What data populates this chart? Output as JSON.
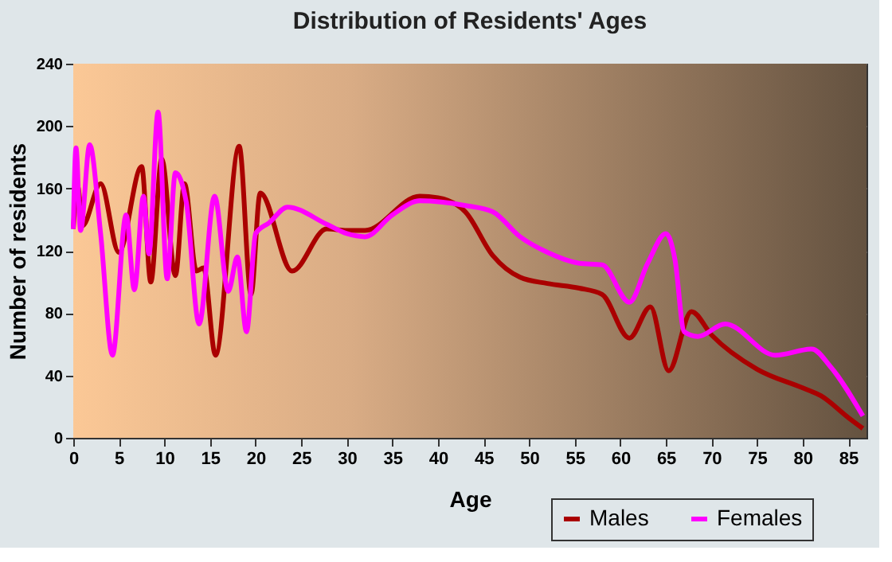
{
  "chart_data": {
    "type": "line",
    "title": "Distribution of Residents' Ages",
    "xlabel": "Age",
    "ylabel": "Number of residents",
    "xlim": [
      0,
      87
    ],
    "xticks": [
      0,
      5,
      10,
      15,
      20,
      25,
      30,
      35,
      40,
      45,
      50,
      55,
      60,
      65,
      70,
      75,
      80,
      85
    ],
    "ylim": [
      0,
      240
    ],
    "yticks": [
      0,
      40,
      80,
      120,
      160,
      200,
      240
    ],
    "grid": true,
    "legend": "bottom right",
    "series": [
      {
        "name": "Males",
        "color": "#aa0000",
        "x": [
          0,
          0.5,
          1,
          3,
          5,
          7.5,
          8.5,
          9.7,
          11.2,
          12.2,
          13.5,
          14.3,
          15.6,
          18.2,
          19.5,
          20.5,
          24,
          27.8,
          30,
          32,
          38,
          40,
          43,
          46,
          49,
          52,
          55.5,
          58,
          61,
          63.3,
          65.3,
          67.8,
          70,
          75,
          80,
          82,
          85,
          86.6
        ],
        "values": [
          134,
          161,
          136,
          163,
          119,
          174,
          100,
          179,
          104,
          163,
          107,
          109,
          53,
          187,
          92,
          157,
          107,
          134,
          133,
          133,
          155,
          154,
          145,
          117,
          103,
          99,
          96,
          92,
          64,
          84,
          43,
          81,
          66,
          44,
          32,
          27,
          13,
          6
        ]
      },
      {
        "name": "Females",
        "color": "#ff00ff",
        "x": [
          0,
          0.3,
          0.8,
          1.8,
          3,
          4.3,
          5.8,
          6.7,
          7.7,
          8.3,
          9.3,
          10.3,
          11.2,
          12.4,
          13.8,
          15.5,
          17,
          18,
          19,
          20,
          21.5,
          23.5,
          27.8,
          30,
          32,
          35,
          38,
          43,
          46,
          49,
          52,
          55.5,
          58,
          61,
          63,
          65,
          66,
          67,
          68.5,
          71.5,
          77,
          81,
          83,
          86.6
        ],
        "values": [
          134,
          186,
          133,
          188,
          131,
          53,
          143,
          95,
          155,
          118,
          209,
          102,
          170,
          151,
          73,
          155,
          94,
          116,
          68,
          131,
          138,
          148,
          137,
          131,
          129,
          143,
          152,
          149,
          145,
          129,
          119,
          112,
          111,
          87,
          112,
          131,
          114,
          68,
          65,
          73,
          53,
          57,
          46,
          14
        ]
      }
    ]
  }
}
